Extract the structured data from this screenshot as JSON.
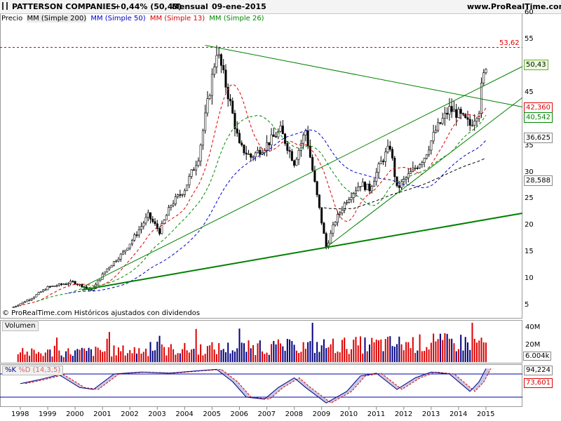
{
  "header": {
    "name": "PATTERSON COMPANIES",
    "change": "+0,44% (50,43)",
    "period": "Mensual",
    "date": "09-ene-2015",
    "site": "www.ProRealTime.com"
  },
  "legend": {
    "price": "Precio",
    "ma200": "MM (Simple 200)",
    "ma50": "MM (Simple 50)",
    "ma13": "MM (Simple 13)",
    "ma26": "MM (Simple 26)"
  },
  "footer_note": "© ProRealTime.com Históricos ajustados con dividendos",
  "colors": {
    "ma200": "#000000",
    "ma50": "#0000cc",
    "ma13": "#dd0000",
    "ma26": "#008800",
    "trend": "#008000",
    "vol_up": "#dd0000",
    "vol_down": "#000080",
    "k": "#000080",
    "d": "#dd0000"
  },
  "chart_data": [
    {
      "type": "candlestick",
      "x_ticks": [
        "1998",
        "1999",
        "2000",
        "2001",
        "2002",
        "2003",
        "2004",
        "2005",
        "2006",
        "2007",
        "2008",
        "2009",
        "2010",
        "2011",
        "2012",
        "2013",
        "2014",
        "2015"
      ],
      "y_ticks": [
        5,
        10,
        15,
        20,
        25,
        30,
        35,
        40,
        45,
        50,
        55,
        60
      ],
      "ylim": [
        3.5,
        61
      ],
      "price_path": [
        [
          "1997-10",
          4.8
        ],
        [
          "1998-06",
          6.5
        ],
        [
          "1999-01",
          8.5
        ],
        [
          "1999-12",
          9.5
        ],
        [
          "2000-05",
          8.6
        ],
        [
          "2000-08",
          7.8
        ],
        [
          "2001-03",
          12
        ],
        [
          "2001-10",
          15
        ],
        [
          "2002-03",
          18
        ],
        [
          "2002-09",
          22
        ],
        [
          "2003-02",
          19
        ],
        [
          "2003-07",
          24
        ],
        [
          "2004-01",
          27
        ],
        [
          "2004-07",
          33
        ],
        [
          "2005-01",
          48
        ],
        [
          "2005-03",
          53
        ],
        [
          "2005-05",
          50
        ],
        [
          "2005-09",
          43
        ],
        [
          "2006-01",
          35
        ],
        [
          "2006-06",
          33
        ],
        [
          "2006-12",
          35
        ],
        [
          "2007-07",
          38
        ],
        [
          "2008-01",
          32
        ],
        [
          "2008-06",
          38
        ],
        [
          "2008-10",
          28
        ],
        [
          "2009-03",
          16
        ],
        [
          "2009-07",
          21
        ],
        [
          "2009-12",
          25
        ],
        [
          "2010-06",
          28
        ],
        [
          "2010-10",
          27
        ],
        [
          "2011-03",
          32
        ],
        [
          "2011-07",
          35
        ],
        [
          "2011-10",
          27
        ],
        [
          "2012-06",
          31
        ],
        [
          "2012-10",
          33
        ],
        [
          "2013-03",
          38
        ],
        [
          "2013-09",
          42
        ],
        [
          "2014-01",
          41
        ],
        [
          "2014-06",
          39
        ],
        [
          "2014-10",
          42
        ],
        [
          "2014-11",
          46
        ],
        [
          "2015-01",
          50.43
        ]
      ],
      "levels": {
        "max_price": "53,62",
        "last": "50,43",
        "ma13": "42,360",
        "ma26": "40,542",
        "ma50": "36,625",
        "ma200": "28,588"
      }
    },
    {
      "type": "bar",
      "title": "Volumen",
      "y_ticks": [
        "40M",
        "20M"
      ],
      "last_value": "6.004k"
    },
    {
      "type": "line",
      "title_k": "%K",
      "title_d": "%D (14,3,5)",
      "ylim": [
        0,
        100
      ],
      "levels": [
        80,
        20
      ],
      "k_last": "94,224",
      "d_last": "73,601",
      "k_path": [
        [
          "1998-01",
          55
        ],
        [
          "1998-09",
          65
        ],
        [
          "1999-06",
          78
        ],
        [
          "2000-03",
          45
        ],
        [
          "2000-09",
          40
        ],
        [
          "2001-06",
          80
        ],
        [
          "2002-06",
          85
        ],
        [
          "2003-06",
          82
        ],
        [
          "2004-06",
          88
        ],
        [
          "2005-03",
          92
        ],
        [
          "2005-10",
          60
        ],
        [
          "2006-04",
          20
        ],
        [
          "2006-12",
          15
        ],
        [
          "2007-06",
          45
        ],
        [
          "2008-01",
          70
        ],
        [
          "2008-06",
          45
        ],
        [
          "2009-03",
          5
        ],
        [
          "2009-12",
          35
        ],
        [
          "2010-06",
          75
        ],
        [
          "2011-01",
          82
        ],
        [
          "2011-10",
          40
        ],
        [
          "2012-06",
          70
        ],
        [
          "2013-01",
          85
        ],
        [
          "2013-09",
          80
        ],
        [
          "2014-06",
          35
        ],
        [
          "2014-10",
          60
        ],
        [
          "2015-01",
          94
        ]
      ]
    }
  ]
}
